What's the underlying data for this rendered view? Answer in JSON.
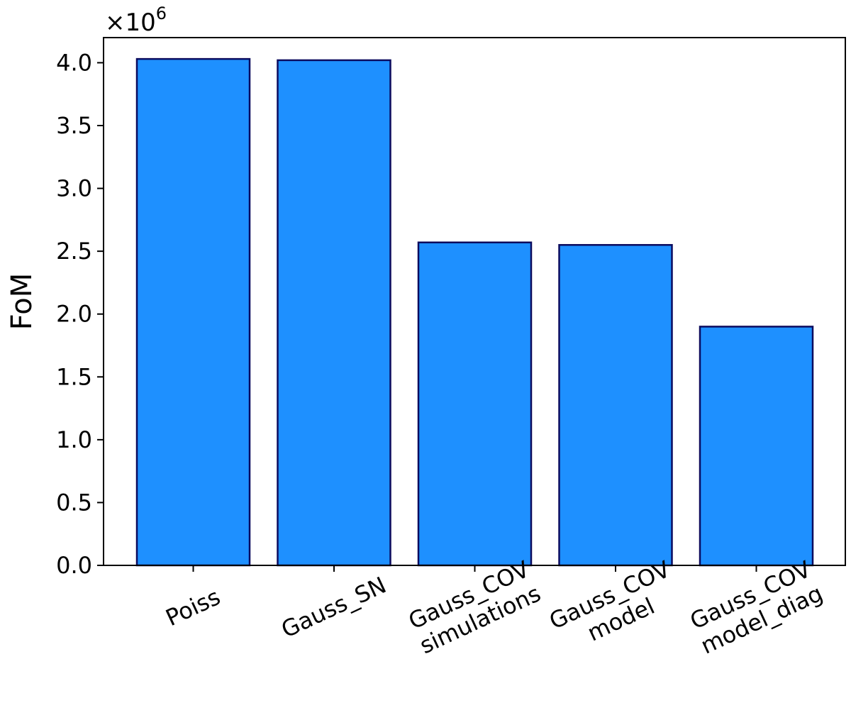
{
  "chart_data": {
    "type": "bar",
    "title": "",
    "xlabel": "",
    "ylabel": "FoM",
    "y_multiplier_base": "×10",
    "y_multiplier_exponent": "6",
    "ylim": [
      0,
      4.2
    ],
    "y_ticks": [
      0.0,
      0.5,
      1.0,
      1.5,
      2.0,
      2.5,
      3.0,
      3.5,
      4.0
    ],
    "y_tick_labels": [
      "0.0",
      "0.5",
      "1.0",
      "1.5",
      "2.0",
      "2.5",
      "3.0",
      "3.5",
      "4.0"
    ],
    "categories": [
      [
        "Poiss"
      ],
      [
        "Gauss_SN"
      ],
      [
        "Gauss_COV",
        "simulations"
      ],
      [
        "Gauss_COV",
        "model"
      ],
      [
        "Gauss_COV",
        "model_diag"
      ]
    ],
    "values": [
      4.03,
      4.02,
      2.57,
      2.55,
      1.9
    ],
    "x_tick_rotation_deg": 25,
    "grid": false,
    "legend": "none",
    "colors": {
      "bar_fill": "#1E90FF",
      "bar_edge": "#0B0B5E",
      "axis": "#000000"
    }
  }
}
